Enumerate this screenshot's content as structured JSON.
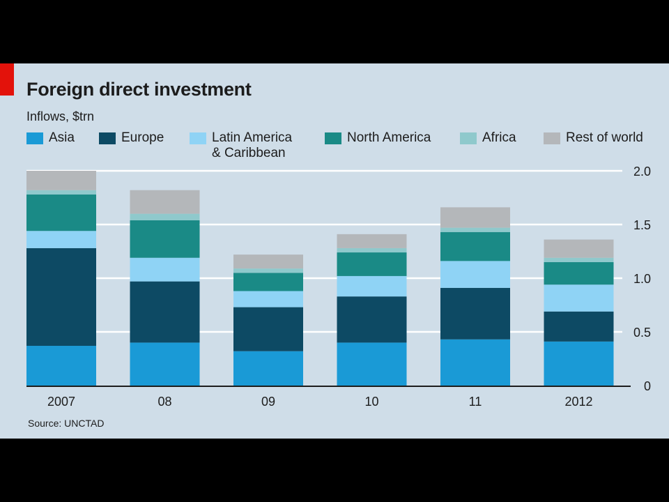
{
  "chart_data": {
    "type": "bar",
    "stacked": true,
    "title": "Foreign direct investment",
    "subtitle": "Inflows, $trn",
    "source": "Source: UNCTAD",
    "categories": [
      "2007",
      "08",
      "09",
      "10",
      "11",
      "2012"
    ],
    "ylim": [
      0,
      2.0
    ],
    "yticks": [
      "0",
      "0.5",
      "1.0",
      "1.5",
      "2.0"
    ],
    "ytick_values": [
      0,
      0.5,
      1.0,
      1.5,
      2.0
    ],
    "y_axis_side": "right",
    "grid": true,
    "legend_position": "top",
    "series": [
      {
        "name": "Asia",
        "color": "#1a9ad6",
        "values": [
          0.37,
          0.4,
          0.32,
          0.4,
          0.43,
          0.41
        ]
      },
      {
        "name": "Europe",
        "color": "#0d4a64",
        "values": [
          0.91,
          0.57,
          0.41,
          0.43,
          0.48,
          0.28
        ]
      },
      {
        "name": "Latin America\n& Caribbean",
        "color": "#8fd3f5",
        "values": [
          0.16,
          0.22,
          0.15,
          0.19,
          0.25,
          0.25
        ]
      },
      {
        "name": "North America",
        "color": "#1a8a86",
        "values": [
          0.34,
          0.35,
          0.17,
          0.22,
          0.27,
          0.21
        ]
      },
      {
        "name": "Africa",
        "color": "#8fc9cc",
        "values": [
          0.04,
          0.06,
          0.04,
          0.04,
          0.04,
          0.04
        ]
      },
      {
        "name": "Rest of world",
        "color": "#b4b7ba",
        "values": [
          0.18,
          0.22,
          0.13,
          0.13,
          0.19,
          0.17
        ]
      }
    ]
  }
}
